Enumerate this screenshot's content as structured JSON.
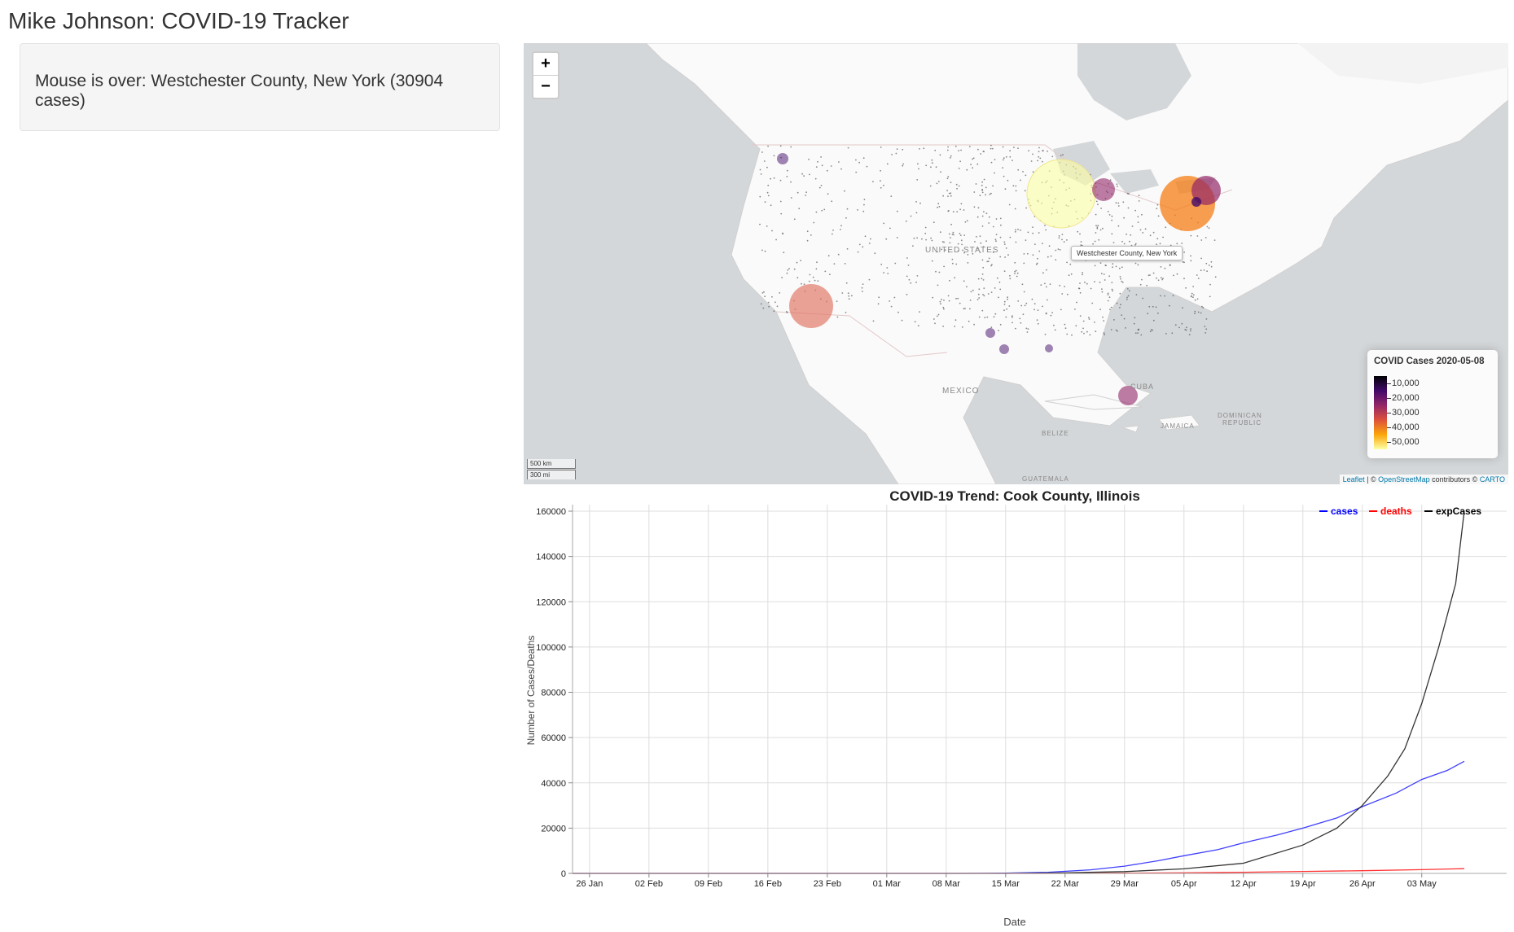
{
  "app": {
    "title": "Mike Johnson: COVID-19 Tracker"
  },
  "sidebar": {
    "hover_text": "Mouse is over: Westchester County, New York (30904 cases)"
  },
  "map": {
    "zoom_in_label": "+",
    "zoom_out_label": "−",
    "tooltip": "Westchester County, New York",
    "labels": {
      "us": "UNITED STATES",
      "mexico": "MEXICO",
      "cuba": "CUBA",
      "jamaica": "JAMAICA",
      "dominican": "DOMINICAN",
      "republic": "REPUBLIC",
      "belize": "BELIZE",
      "guatemala": "GUATEMALA"
    },
    "scale": {
      "km": "500 km",
      "mi": "300 mi"
    },
    "attribution": {
      "leaflet": "Leaflet",
      "sep1": " | © ",
      "osm": "OpenStreetMap",
      "contrib": " contributors © ",
      "carto": "CARTO"
    },
    "legend": {
      "title": "COVID Cases 2020-05-08",
      "ticks": [
        "10,000",
        "20,000",
        "30,000",
        "40,000",
        "50,000"
      ],
      "palette": [
        "#000004",
        "#420a68",
        "#932667",
        "#dd513a",
        "#fca50a",
        "#fcffa4"
      ]
    }
  },
  "chart_data": {
    "type": "line",
    "title": "COVID-19 Trend: Cook County, Illinois",
    "xlabel": "Date",
    "ylabel": "Number of Cases/Deaths",
    "ylim": [
      0,
      160000
    ],
    "yticks": [
      0,
      20000,
      40000,
      60000,
      80000,
      100000,
      120000,
      140000,
      160000
    ],
    "x_range": [
      "2020-01-24",
      "2020-05-13"
    ],
    "xticks": [
      {
        "date": "2020-01-26",
        "label": "26 Jan"
      },
      {
        "date": "2020-02-02",
        "label": "02 Feb"
      },
      {
        "date": "2020-02-09",
        "label": "09 Feb"
      },
      {
        "date": "2020-02-16",
        "label": "16 Feb"
      },
      {
        "date": "2020-02-23",
        "label": "23 Feb"
      },
      {
        "date": "2020-03-01",
        "label": "01 Mar"
      },
      {
        "date": "2020-03-08",
        "label": "08 Mar"
      },
      {
        "date": "2020-03-15",
        "label": "15 Mar"
      },
      {
        "date": "2020-03-22",
        "label": "22 Mar"
      },
      {
        "date": "2020-03-29",
        "label": "29 Mar"
      },
      {
        "date": "2020-04-05",
        "label": "05 Apr"
      },
      {
        "date": "2020-04-12",
        "label": "12 Apr"
      },
      {
        "date": "2020-04-19",
        "label": "19 Apr"
      },
      {
        "date": "2020-04-26",
        "label": "26 Apr"
      },
      {
        "date": "2020-05-03",
        "label": "03 May"
      }
    ],
    "legend_position": "top-right",
    "grid": true,
    "series": [
      {
        "name": "cases",
        "color": "#0000ff",
        "points": [
          [
            "2020-01-24",
            0
          ],
          [
            "2020-03-10",
            0
          ],
          [
            "2020-03-15",
            100
          ],
          [
            "2020-03-20",
            500
          ],
          [
            "2020-03-25",
            1600
          ],
          [
            "2020-03-29",
            3200
          ],
          [
            "2020-04-02",
            5600
          ],
          [
            "2020-04-05",
            7800
          ],
          [
            "2020-04-09",
            10500
          ],
          [
            "2020-04-12",
            13500
          ],
          [
            "2020-04-16",
            17000
          ],
          [
            "2020-04-19",
            20000
          ],
          [
            "2020-04-23",
            24500
          ],
          [
            "2020-04-26",
            29500
          ],
          [
            "2020-04-30",
            35500
          ],
          [
            "2020-05-03",
            41500
          ],
          [
            "2020-05-06",
            45500
          ],
          [
            "2020-05-08",
            49500
          ]
        ]
      },
      {
        "name": "deaths",
        "color": "#ff0000",
        "points": [
          [
            "2020-01-24",
            0
          ],
          [
            "2020-03-20",
            0
          ],
          [
            "2020-03-29",
            100
          ],
          [
            "2020-04-05",
            250
          ],
          [
            "2020-04-12",
            500
          ],
          [
            "2020-04-19",
            850
          ],
          [
            "2020-04-26",
            1200
          ],
          [
            "2020-05-03",
            1650
          ],
          [
            "2020-05-08",
            2100
          ]
        ]
      },
      {
        "name": "expCases",
        "color": "#000000",
        "points": [
          [
            "2020-01-24",
            0
          ],
          [
            "2020-03-15",
            0
          ],
          [
            "2020-03-22",
            250
          ],
          [
            "2020-03-29",
            800
          ],
          [
            "2020-04-05",
            2000
          ],
          [
            "2020-04-12",
            4500
          ],
          [
            "2020-04-19",
            12500
          ],
          [
            "2020-04-23",
            20000
          ],
          [
            "2020-04-26",
            30000
          ],
          [
            "2020-04-29",
            43000
          ],
          [
            "2020-05-01",
            55000
          ],
          [
            "2020-05-03",
            75000
          ],
          [
            "2020-05-05",
            100000
          ],
          [
            "2020-05-07",
            128000
          ],
          [
            "2020-05-08",
            160000
          ]
        ]
      }
    ]
  }
}
